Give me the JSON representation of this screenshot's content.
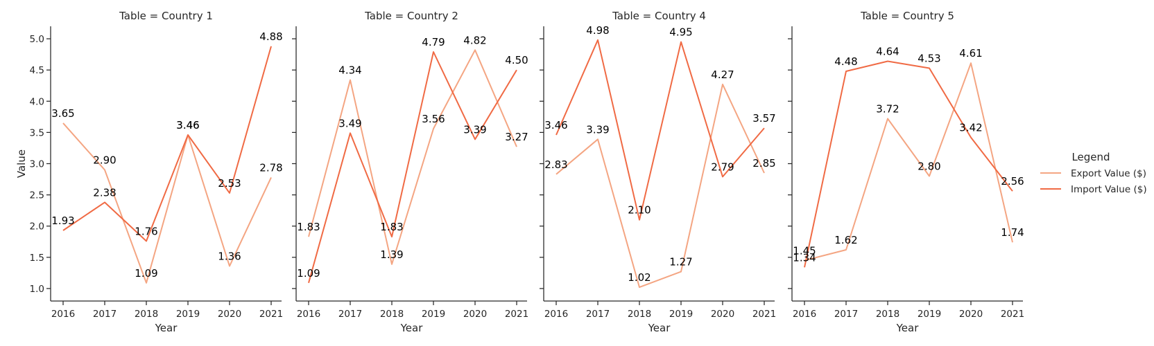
{
  "chart_data": {
    "type": "line",
    "x": [
      2016,
      2017,
      2018,
      2019,
      2020,
      2021
    ],
    "xlabel": "Year",
    "ylabel": "Value",
    "ylim": [
      0.8,
      5.2
    ],
    "yticks": [
      1.0,
      1.5,
      2.0,
      2.5,
      3.0,
      3.5,
      4.0,
      4.5,
      5.0
    ],
    "ytick_labels": [
      "1.0",
      "1.5",
      "2.0",
      "2.5",
      "3.0",
      "3.5",
      "4.0",
      "4.5",
      "5.0"
    ],
    "grid": false,
    "legend": {
      "title": "Legend",
      "position": "right",
      "entries": [
        {
          "name": "Export Value ($)",
          "color": "#f4a582"
        },
        {
          "name": "Import Value ($)",
          "color": "#f06a44"
        }
      ]
    },
    "panels": [
      {
        "title": "Table = Country 1",
        "series": [
          {
            "name": "Export Value ($)",
            "values": [
              3.65,
              2.9,
              1.09,
              3.46,
              1.36,
              2.78
            ],
            "labels": [
              "3.65",
              "2.90",
              "1.09",
              "3.46",
              "1.36",
              "2.78"
            ]
          },
          {
            "name": "Import Value ($)",
            "values": [
              1.93,
              2.38,
              1.76,
              3.46,
              2.53,
              4.88
            ],
            "labels": [
              "1.93",
              "2.38",
              "1.76",
              "3.46",
              "2.53",
              "4.88"
            ]
          }
        ]
      },
      {
        "title": "Table = Country 2",
        "series": [
          {
            "name": "Export Value ($)",
            "values": [
              1.83,
              4.34,
              1.39,
              3.56,
              4.82,
              3.27
            ],
            "labels": [
              "1.83",
              "4.34",
              "1.39",
              "3.56",
              "4.82",
              "3.27"
            ]
          },
          {
            "name": "Import Value ($)",
            "values": [
              1.09,
              3.49,
              1.83,
              4.79,
              3.39,
              4.5
            ],
            "labels": [
              "1.09",
              "3.49",
              "1.83",
              "4.79",
              "3.39",
              "4.50"
            ]
          }
        ]
      },
      {
        "title": "Table = Country 4",
        "series": [
          {
            "name": "Export Value ($)",
            "values": [
              2.83,
              3.39,
              1.02,
              1.27,
              4.27,
              2.85
            ],
            "labels": [
              "2.83",
              "3.39",
              "1.02",
              "1.27",
              "4.27",
              "2.85"
            ]
          },
          {
            "name": "Import Value ($)",
            "values": [
              3.46,
              4.98,
              2.1,
              4.95,
              2.79,
              3.57
            ],
            "labels": [
              "3.46",
              "4.98",
              "2.10",
              "4.95",
              "2.79",
              "3.57"
            ]
          }
        ]
      },
      {
        "title": "Table = Country 5",
        "series": [
          {
            "name": "Export Value ($)",
            "values": [
              1.45,
              1.62,
              3.72,
              2.8,
              4.61,
              1.74
            ],
            "labels": [
              "1.45",
              "1.62",
              "3.72",
              "2.80",
              "4.61",
              "1.74"
            ]
          },
          {
            "name": "Import Value ($)",
            "values": [
              1.34,
              4.48,
              4.64,
              4.53,
              3.42,
              2.56
            ],
            "labels": [
              "1.34",
              "4.48",
              "4.64",
              "4.53",
              "3.42",
              "2.56"
            ]
          }
        ]
      }
    ]
  }
}
